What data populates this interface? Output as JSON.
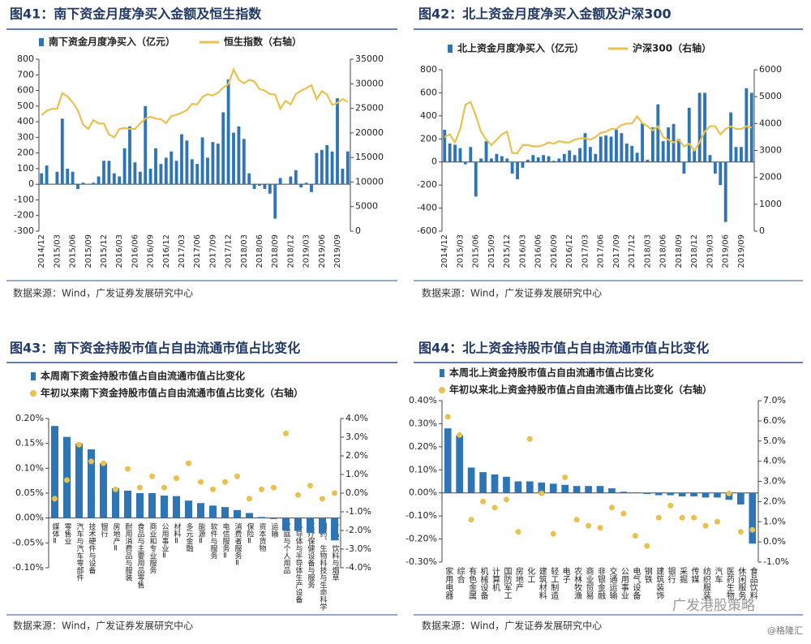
{
  "chart_data": [
    {
      "type": "combo",
      "title": "图41：南下资金月度净买入金额及恒生指数",
      "source": "数据来源：Wind，广发证券发展研究中心",
      "categories": [
        "2014/12",
        null,
        null,
        "2015/03",
        null,
        null,
        "2015/06",
        null,
        null,
        "2015/09",
        null,
        null,
        "2015/12",
        null,
        null,
        "2016/03",
        null,
        null,
        "2016/06",
        null,
        null,
        "2016/09",
        null,
        null,
        "2016/12",
        null,
        null,
        "2017/03",
        null,
        null,
        "2017/06",
        null,
        null,
        "2017/09",
        null,
        null,
        "2017/12",
        null,
        null,
        "2018/03",
        null,
        null,
        "2018/06",
        null,
        null,
        "2018/09",
        null,
        null,
        "2018/12",
        null,
        null,
        "2019/03",
        null,
        null,
        "2019/06",
        null,
        null,
        "2019/09",
        null,
        null
      ],
      "ylim": [
        -300,
        800
      ],
      "yticks": [
        -300,
        -200,
        -100,
        0,
        100,
        200,
        300,
        400,
        500,
        600,
        700,
        800
      ],
      "y2lim": [
        0,
        35000
      ],
      "y2ticks": [
        0,
        5000,
        10000,
        15000,
        20000,
        25000,
        30000,
        35000
      ],
      "series": [
        {
          "name": "南下资金月度净买入（亿元）",
          "kind": "bar",
          "color": "#2e75b6",
          "values": [
            70,
            120,
            0,
            80,
            420,
            100,
            80,
            -30,
            10,
            0,
            10,
            50,
            150,
            150,
            70,
            50,
            230,
            370,
            140,
            80,
            500,
            100,
            230,
            130,
            170,
            210,
            150,
            320,
            280,
            160,
            130,
            300,
            170,
            270,
            260,
            460,
            670,
            330,
            370,
            290,
            70,
            -30,
            -10,
            -30,
            -60,
            -220,
            40,
            0,
            50,
            90,
            -20,
            10,
            -50,
            200,
            220,
            250,
            210,
            550,
            100,
            210
          ]
        },
        {
          "name": "恒生指数（右轴）",
          "kind": "line",
          "axis": "y2",
          "color": "#e8c14e",
          "values": [
            23600,
            24500,
            24900,
            24900,
            28100,
            27400,
            26200,
            24600,
            21700,
            20800,
            22600,
            21900,
            21900,
            19700,
            19100,
            20800,
            21000,
            20800,
            20800,
            21900,
            22900,
            23300,
            22900,
            22800,
            22000,
            23400,
            23700,
            24100,
            24600,
            25900,
            25800,
            27300,
            27900,
            27600,
            28200,
            29200,
            29900,
            32900,
            30800,
            30100,
            30800,
            30500,
            28900,
            28600,
            27900,
            27800,
            24900,
            26500,
            25800,
            27900,
            28600,
            29100,
            29700,
            26900,
            28500,
            27800,
            25700,
            26100,
            26900,
            26300
          ]
        }
      ]
    },
    {
      "type": "combo",
      "title": "图42：北上资金月度净买入金额及沪深300",
      "source": "数据来源：Wind，广发证券发展研究中心",
      "categories": [
        "2014/12",
        null,
        null,
        "2015/03",
        null,
        null,
        "2015/06",
        null,
        null,
        "2015/09",
        null,
        null,
        "2015/12",
        null,
        null,
        "2016/03",
        null,
        null,
        "2016/06",
        null,
        null,
        "2016/09",
        null,
        null,
        "2016/12",
        null,
        null,
        "2017/03",
        null,
        null,
        "2017/06",
        null,
        null,
        "2017/09",
        null,
        null,
        "2017/12",
        null,
        null,
        "2018/03",
        null,
        null,
        "2018/06",
        null,
        null,
        "2018/09",
        null,
        null,
        "2018/12",
        null,
        null,
        "2019/03",
        null,
        null,
        "2019/06",
        null,
        null,
        "2019/09",
        null,
        null
      ],
      "ylim": [
        -600,
        800
      ],
      "yticks": [
        -600,
        -400,
        -200,
        0,
        200,
        400,
        600,
        800
      ],
      "y2lim": [
        0,
        6000
      ],
      "y2ticks": [
        0,
        1000,
        2000,
        3000,
        4000,
        5000,
        6000
      ],
      "series": [
        {
          "name": "北上资金月度净买入（亿元）",
          "kind": "bar",
          "color": "#2e75b6",
          "values": [
            280,
            160,
            150,
            120,
            -20,
            130,
            -300,
            30,
            180,
            30,
            70,
            50,
            30,
            -100,
            -150,
            -50,
            20,
            60,
            40,
            60,
            50,
            10,
            30,
            70,
            100,
            60,
            120,
            250,
            130,
            70,
            220,
            230,
            220,
            280,
            250,
            160,
            140,
            80,
            340,
            20,
            300,
            500,
            180,
            300,
            330,
            200,
            -100,
            470,
            100,
            600,
            600,
            60,
            -100,
            -200,
            -520,
            430,
            130,
            130,
            640,
            600
          ]
        },
        {
          "name": "沪深300（右轴）",
          "kind": "line",
          "axis": "y2",
          "color": "#e8c14e",
          "values": [
            3500,
            3600,
            3300,
            3800,
            4700,
            4800,
            4300,
            3700,
            3400,
            3200,
            3400,
            3600,
            3700,
            2900,
            2900,
            3200,
            3200,
            3150,
            3150,
            3200,
            3300,
            3250,
            3350,
            3300,
            3300,
            3400,
            3450,
            3450,
            3400,
            3500,
            3650,
            3700,
            3800,
            3800,
            3950,
            4000,
            4000,
            4270,
            4020,
            3900,
            3750,
            3900,
            3500,
            3400,
            3300,
            3400,
            3150,
            3250,
            3000,
            3300,
            3700,
            3900,
            3900,
            3600,
            3800,
            3900,
            3800,
            3800,
            3900,
            3850
          ]
        }
      ]
    },
    {
      "type": "combo",
      "title": "图43：南下资金持股市值占自由流通市值占比变化",
      "source": "数据来源：Wind，广发证券发展研究中心",
      "categories": [
        "媒体Ⅱ",
        "零售业",
        "汽车与汽车零部件",
        "技术硬件与设备",
        "银行",
        "房地产Ⅱ",
        "耐用消费品与服装",
        "食品与主要用品零售",
        "商业和专业服务",
        "公用事业Ⅱ",
        "材料Ⅱ",
        "多元金融",
        "能源Ⅱ",
        "软件与服务",
        "电信服务Ⅱ",
        "消费者服务Ⅱ",
        "保险Ⅱ",
        "资本货物",
        "运输",
        "家庭与个人用品",
        "半导体与半导体生产设备",
        "医疗保健设备与服务",
        "制药、生物科技与生命科学",
        "食品、饮料与烟草"
      ],
      "ylim": [
        -0.1,
        0.2
      ],
      "yticks": [
        {
          "value": -0.1,
          "label": "-0.10%"
        },
        {
          "value": -0.05,
          "label": "-0.05%"
        },
        {
          "value": 0,
          "label": "0.00%"
        },
        {
          "value": 0.05,
          "label": "0.05%"
        },
        {
          "value": 0.1,
          "label": "0.10%"
        },
        {
          "value": 0.15,
          "label": "0.15%"
        },
        {
          "value": 0.2,
          "label": "0.20%"
        }
      ],
      "y2lim": [
        -4,
        4
      ],
      "y2ticks": [
        {
          "value": -4,
          "label": "-4.0%"
        },
        {
          "value": -3,
          "label": "-3.0%"
        },
        {
          "value": -2,
          "label": "-2.0%"
        },
        {
          "value": -1,
          "label": "-1.0%"
        },
        {
          "value": 0,
          "label": "0.0%"
        },
        {
          "value": 1,
          "label": "1.0%"
        },
        {
          "value": 2,
          "label": "2.0%"
        },
        {
          "value": 3,
          "label": "3.0%"
        },
        {
          "value": 4,
          "label": "4.0%"
        }
      ],
      "series": [
        {
          "name": "本周南下资金持股市值占自由流通市值占比变化",
          "kind": "bar",
          "color": "#2e75b6",
          "values": [
            0.185,
            0.163,
            0.15,
            0.138,
            0.11,
            0.06,
            0.055,
            0.05,
            0.05,
            0.045,
            0.044,
            0.035,
            0.03,
            0.025,
            0.022,
            0.016,
            0.01,
            0.002,
            -0.002,
            -0.025,
            -0.026,
            -0.03,
            -0.031,
            -0.045
          ]
        },
        {
          "name": "年初以来南下资金持股市值占自由流通市值占比变化（右轴）",
          "kind": "scatter",
          "axis": "y2",
          "color": "#e8c14e",
          "values": [
            -0.3,
            0.7,
            2.6,
            1.7,
            1.6,
            0.2,
            1.3,
            0.3,
            0.9,
            0.3,
            0.8,
            1.6,
            0.6,
            0.2,
            0.6,
            0.9,
            -0.3,
            0.2,
            0.3,
            3.2,
            -0.1,
            0.4,
            -0.3,
            0.0
          ]
        }
      ]
    },
    {
      "type": "combo",
      "title": "图44：北上资金持股市值占自由流通市值占比变化",
      "source": "数据来源：Wind，广发证券发展研究中心",
      "categories": [
        "家用电器",
        "综合",
        "有色金属",
        "机械设备",
        "计算机",
        "国防军工",
        "房地产",
        "化工",
        "建筑材料",
        "轻工制造",
        "电子",
        "农林牧渔",
        "商业贸易",
        "非银金融",
        "交通运输",
        "公用事业",
        "电气设备",
        "钢铁",
        "建筑装饰",
        "银行",
        "采掘",
        "传媒",
        "纺织服装",
        "汽车",
        "医药生物",
        "休闲服务",
        "食品饮料"
      ],
      "ylim": [
        -0.3,
        0.4
      ],
      "yticks": [
        {
          "value": -0.3,
          "label": "-0.30%"
        },
        {
          "value": -0.2,
          "label": "-0.20%"
        },
        {
          "value": -0.1,
          "label": "-0.10%"
        },
        {
          "value": 0,
          "label": "0.00%"
        },
        {
          "value": 0.1,
          "label": "0.10%"
        },
        {
          "value": 0.2,
          "label": "0.20%"
        },
        {
          "value": 0.3,
          "label": "0.30%"
        },
        {
          "value": 0.4,
          "label": "0.40%"
        }
      ],
      "y2lim": [
        -1,
        7
      ],
      "y2ticks": [
        {
          "value": -1,
          "label": "-1.0%"
        },
        {
          "value": 0,
          "label": "0.0%"
        },
        {
          "value": 1,
          "label": "1.0%"
        },
        {
          "value": 2,
          "label": "2.0%"
        },
        {
          "value": 3,
          "label": "3.0%"
        },
        {
          "value": 4,
          "label": "4.0%"
        },
        {
          "value": 5,
          "label": "5.0%"
        },
        {
          "value": 6,
          "label": "6.0%"
        },
        {
          "value": 7,
          "label": "7.0%"
        }
      ],
      "series": [
        {
          "name": "本周北上资金持股市值占自由流通市值占比变化",
          "kind": "bar",
          "color": "#2e75b6",
          "values": [
            0.28,
            0.25,
            0.11,
            0.09,
            0.08,
            0.07,
            0.05,
            0.05,
            0.045,
            0.04,
            0.035,
            0.03,
            0.03,
            0.03,
            0.02,
            0.005,
            0.002,
            -0.005,
            -0.01,
            -0.01,
            -0.015,
            -0.015,
            -0.02,
            -0.02,
            -0.03,
            -0.05,
            -0.22
          ]
        },
        {
          "name": "年初以来北上资金持股市值占自由流通市值占比变化（右轴）",
          "kind": "scatter",
          "axis": "y2",
          "color": "#e8c14e",
          "values": [
            6.2,
            5.3,
            1.1,
            2.0,
            1.7,
            2.1,
            0.5,
            5.1,
            2.4,
            0.4,
            3.2,
            1.1,
            0.8,
            0.7,
            1.7,
            1.4,
            0.3,
            -0.2,
            1.2,
            1.8,
            1.2,
            1.2,
            0.8,
            1.0,
            2.4,
            0.5,
            0.6
          ]
        }
      ]
    }
  ],
  "watermark": [
    "广发港股策略",
    "@格隆汇"
  ]
}
